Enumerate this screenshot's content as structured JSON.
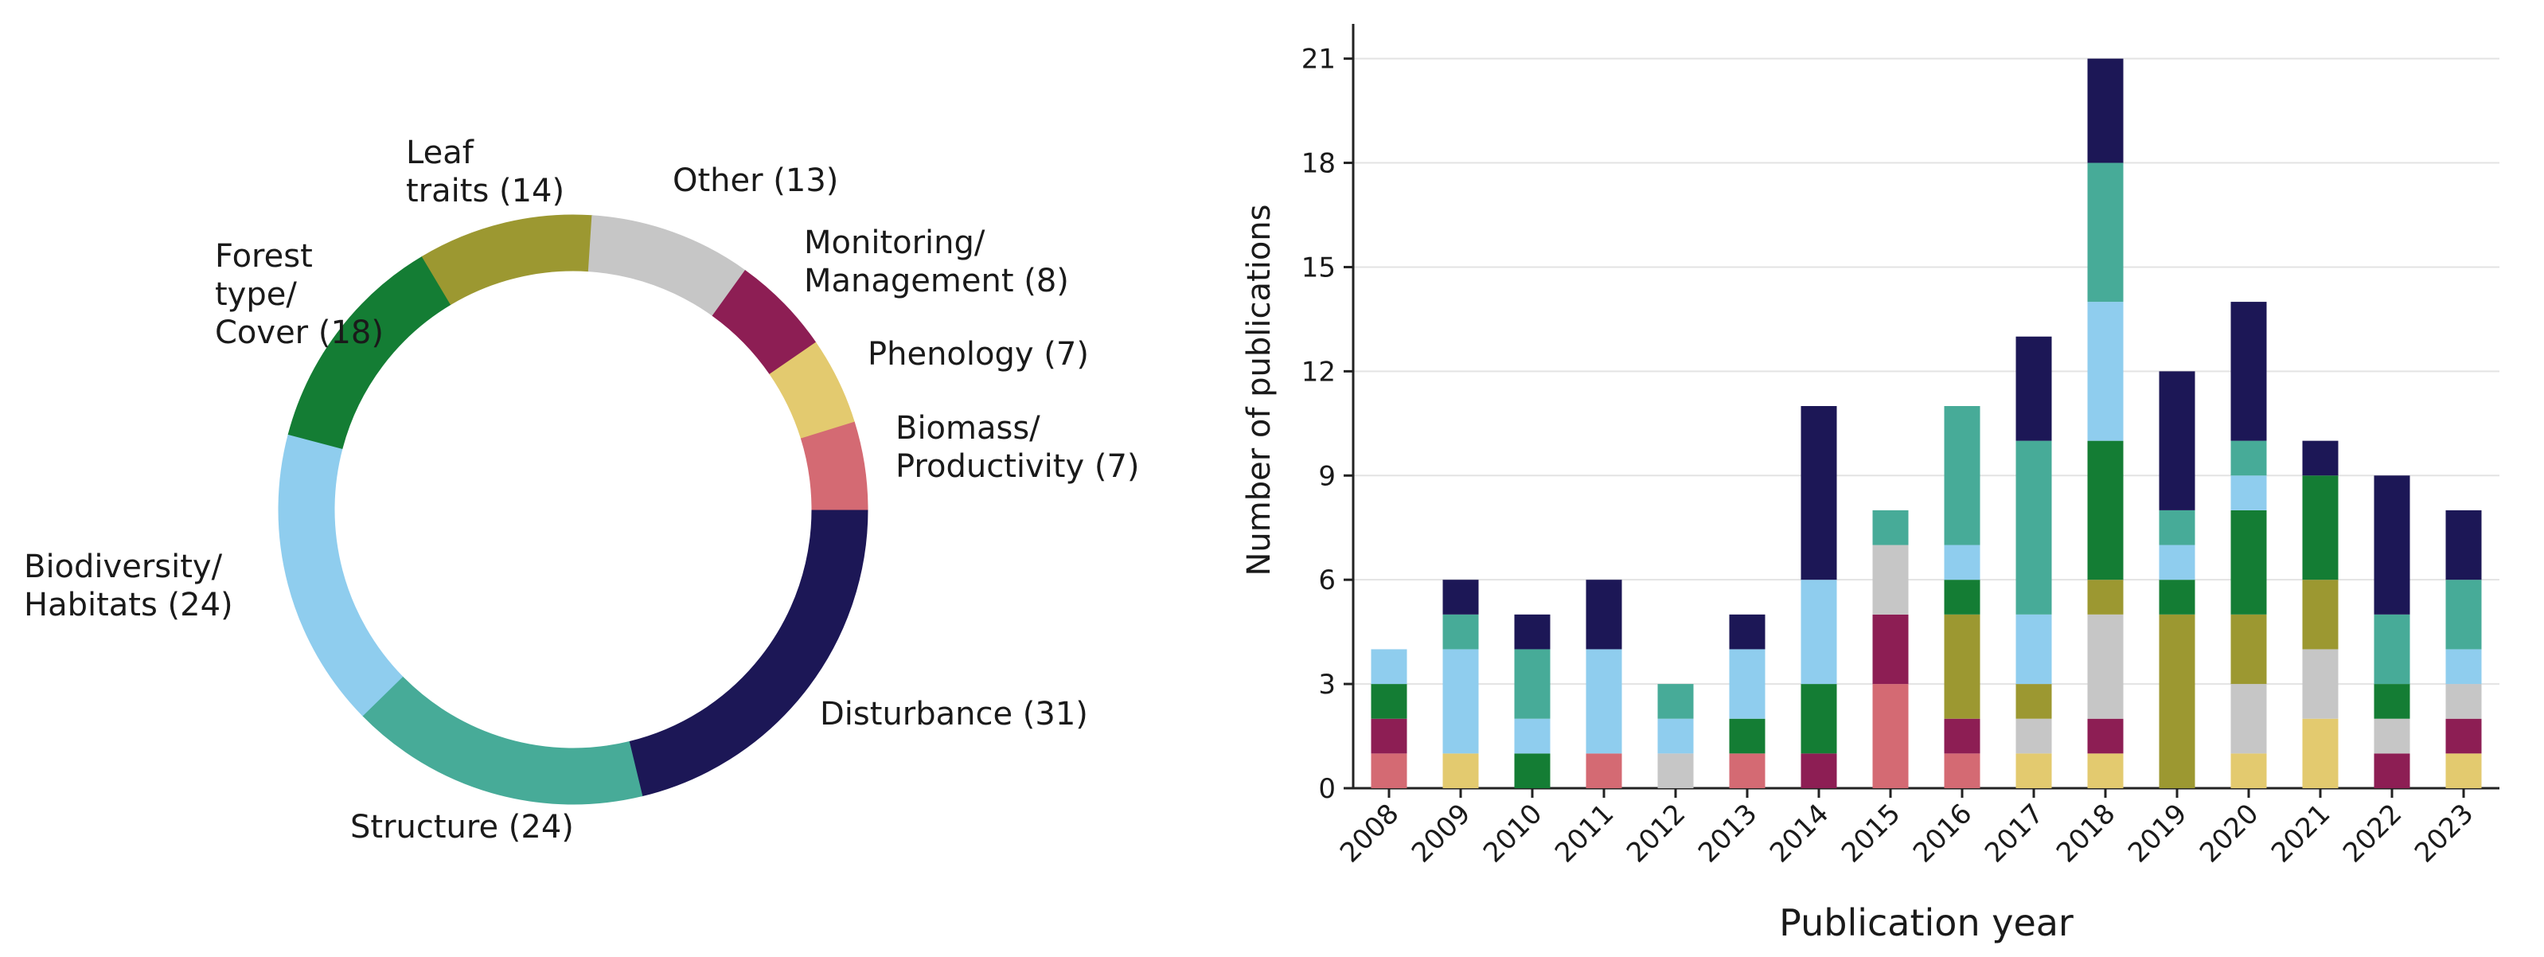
{
  "chart_data": [
    {
      "type": "pie",
      "variant": "donut",
      "labels": [
        "Disturbance",
        "Structure",
        "Biodiversity/ Habitats",
        "Forest type/ Cover",
        "Leaf traits",
        "Other",
        "Monitoring/ Management",
        "Phenology",
        "Biomass/ Productivity"
      ],
      "values": [
        31,
        24,
        24,
        18,
        14,
        13,
        8,
        7,
        7
      ],
      "colors": [
        "#1c1756",
        "#47ab98",
        "#8fcdee",
        "#147d34",
        "#9c9831",
        "#c6c6c6",
        "#8d1e54",
        "#e3ca6f",
        "#d46a73"
      ],
      "slice_labels": [
        [
          "Disturbance (31)"
        ],
        [
          "Structure (24)"
        ],
        [
          "Biodiversity/",
          "Habitats (24)"
        ],
        [
          "Forest",
          "type/",
          "Cover (18)"
        ],
        [
          "Leaf",
          "traits (14)"
        ],
        [
          "Other (13)"
        ],
        [
          "Monitoring/",
          "Management (8)"
        ],
        [
          "Phenology (7)"
        ],
        [
          "Biomass/",
          "Productivity (7)"
        ]
      ]
    },
    {
      "type": "bar",
      "stacked": true,
      "categories": [
        "2008",
        "2009",
        "2010",
        "2011",
        "2012",
        "2013",
        "2014",
        "2015",
        "2016",
        "2017",
        "2018",
        "2019",
        "2020",
        "2021",
        "2022",
        "2023"
      ],
      "series": [
        {
          "name": "Biomass/Productivity",
          "color": "#d46a73",
          "values": [
            1,
            0,
            0,
            1,
            0,
            1,
            0,
            3,
            1,
            0,
            0,
            0,
            0,
            0,
            0,
            0
          ]
        },
        {
          "name": "Phenology",
          "color": "#e3ca6f",
          "values": [
            0,
            1,
            0,
            0,
            0,
            0,
            0,
            0,
            0,
            1,
            1,
            0,
            1,
            2,
            0,
            1
          ]
        },
        {
          "name": "Monitoring/Management",
          "color": "#8d1e54",
          "values": [
            1,
            0,
            0,
            0,
            0,
            0,
            1,
            2,
            1,
            0,
            1,
            0,
            0,
            0,
            1,
            1
          ]
        },
        {
          "name": "Other",
          "color": "#c6c6c6",
          "values": [
            0,
            0,
            0,
            0,
            1,
            0,
            0,
            2,
            0,
            1,
            3,
            0,
            2,
            2,
            1,
            1
          ]
        },
        {
          "name": "Leaf traits",
          "color": "#9c9831",
          "values": [
            0,
            0,
            0,
            0,
            0,
            0,
            0,
            0,
            3,
            1,
            1,
            5,
            2,
            2,
            0,
            0
          ]
        },
        {
          "name": "Forest type/Cover",
          "color": "#147d34",
          "values": [
            1,
            0,
            1,
            0,
            0,
            1,
            2,
            0,
            1,
            0,
            4,
            1,
            3,
            3,
            1,
            0
          ]
        },
        {
          "name": "Biodiversity/Habitats",
          "color": "#8fcdee",
          "values": [
            1,
            3,
            1,
            3,
            1,
            2,
            3,
            0,
            1,
            2,
            4,
            1,
            1,
            0,
            0,
            1
          ]
        },
        {
          "name": "Structure",
          "color": "#47ab98",
          "values": [
            0,
            1,
            2,
            0,
            1,
            0,
            0,
            1,
            4,
            5,
            4,
            1,
            1,
            0,
            2,
            2
          ]
        },
        {
          "name": "Disturbance",
          "color": "#1c1756",
          "values": [
            0,
            1,
            1,
            2,
            0,
            1,
            5,
            0,
            0,
            3,
            3,
            4,
            4,
            1,
            4,
            2
          ]
        }
      ],
      "title": "",
      "xlabel": "Publication year",
      "ylabel": "Number of publications",
      "ylim": [
        0,
        22
      ],
      "yticks": [
        0,
        3,
        6,
        9,
        12,
        15,
        18,
        21
      ],
      "grid": "horizontal"
    }
  ]
}
